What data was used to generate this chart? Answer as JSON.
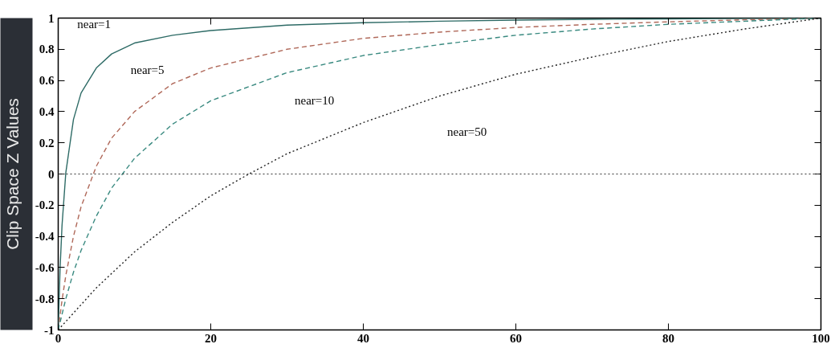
{
  "chart_data": {
    "type": "line",
    "ylabel": "Clip Space Z Values",
    "xlim": [
      0,
      100
    ],
    "ylim": [
      -1,
      1
    ],
    "xticks": [
      0,
      20,
      40,
      60,
      80,
      100
    ],
    "yticks": [
      {
        "value": -1,
        "label": "-1"
      },
      {
        "value": -0.8,
        "label": "-0.8"
      },
      {
        "value": -0.6,
        "label": "-0.6"
      },
      {
        "value": -0.4,
        "label": "-0.4"
      },
      {
        "value": -0.2,
        "label": "-0.2"
      },
      {
        "value": 0,
        "label": "0"
      },
      {
        "value": 0.2,
        "label": "0.2"
      },
      {
        "value": 0.4,
        "label": "0.4"
      },
      {
        "value": 0.6,
        "label": "0.6"
      },
      {
        "value": 0.8,
        "label": "0.8"
      },
      {
        "value": 1,
        "label": "1"
      }
    ],
    "grid": false,
    "marker": "none",
    "ref_lines": [
      {
        "axis": "y",
        "value": 0,
        "color": "#333333",
        "line_style": "dotted"
      }
    ],
    "series": [
      {
        "name": "near=1",
        "color": "#2e6b66",
        "line_style": "solid",
        "x": [
          0,
          0.25,
          0.5,
          1,
          2,
          3,
          5,
          7,
          10,
          15,
          20,
          30,
          40,
          50,
          60,
          70,
          80,
          90,
          100
        ],
        "values": [
          -1,
          -0.6,
          -0.33,
          0.01,
          0.35,
          0.52,
          0.68,
          0.77,
          0.84,
          0.89,
          0.92,
          0.955,
          0.97,
          0.98,
          0.987,
          0.992,
          0.995,
          0.998,
          1
        ]
      },
      {
        "name": "near=5",
        "color": "#b0695a",
        "line_style": "dashed",
        "x": [
          0,
          0.5,
          1,
          2,
          3,
          5,
          7,
          10,
          15,
          20,
          30,
          40,
          50,
          60,
          70,
          80,
          90,
          100
        ],
        "values": [
          -1,
          -0.81,
          -0.65,
          -0.4,
          -0.21,
          0.05,
          0.23,
          0.4,
          0.58,
          0.68,
          0.8,
          0.87,
          0.91,
          0.94,
          0.96,
          0.976,
          0.989,
          1
        ]
      },
      {
        "name": "near=10",
        "color": "#3a8a80",
        "line_style": "dashed",
        "x": [
          0,
          1,
          2,
          3,
          5,
          7,
          10,
          15,
          20,
          30,
          40,
          50,
          60,
          70,
          80,
          90,
          100
        ],
        "values": [
          -1,
          -0.8,
          -0.63,
          -0.49,
          -0.27,
          -0.09,
          0.1,
          0.32,
          0.47,
          0.65,
          0.76,
          0.83,
          0.89,
          0.93,
          0.96,
          0.98,
          1
        ]
      },
      {
        "name": "near=50",
        "color": "#222222",
        "line_style": "dotted",
        "x": [
          0,
          5,
          10,
          15,
          20,
          25,
          30,
          40,
          50,
          60,
          70,
          80,
          90,
          100
        ],
        "values": [
          -1,
          -0.73,
          -0.5,
          -0.31,
          -0.14,
          0,
          0.13,
          0.33,
          0.5,
          0.64,
          0.75,
          0.85,
          0.93,
          1
        ]
      }
    ]
  }
}
